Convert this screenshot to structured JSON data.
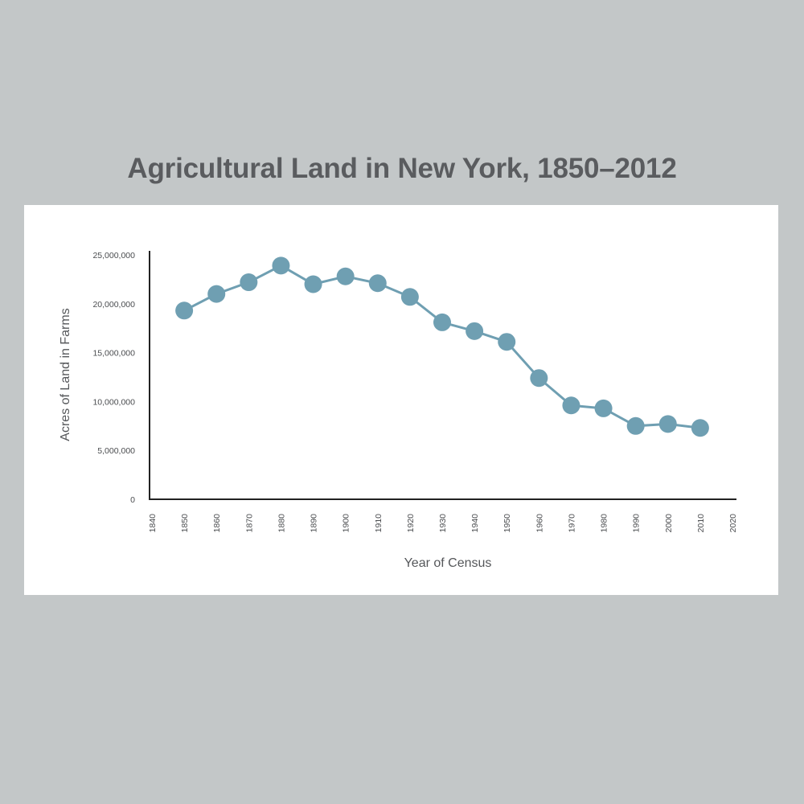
{
  "chart_data": {
    "type": "line",
    "title": "Agricultural  Land in New York, 1850–2012",
    "xlabel": "Year of Census",
    "ylabel": "Acres of Land in Farms",
    "xlim": [
      1840,
      2020
    ],
    "ylim": [
      0,
      25000000
    ],
    "x_ticks": [
      "1840",
      "1850",
      "1860",
      "1870",
      "1880",
      "1890",
      "1900",
      "1910",
      "1920",
      "1930",
      "1940",
      "1950",
      "1960",
      "1970",
      "1980",
      "1990",
      "2000",
      "2010",
      "2020"
    ],
    "y_ticks": [
      "0",
      "5,000,000",
      "10,000,000",
      "15,000,000",
      "20,000,000",
      "25,000,000"
    ],
    "grid": false,
    "legend": "none",
    "colors": {
      "series": "#6f9fb2",
      "axis": "#222222"
    },
    "series": [
      {
        "x": [
          1850,
          1860,
          1870,
          1880,
          1890,
          1900,
          1910,
          1920,
          1930,
          1940,
          1950,
          1960,
          1970,
          1980,
          1990,
          2000,
          2010
        ],
        "values": [
          19300000,
          21000000,
          22200000,
          23900000,
          22000000,
          22800000,
          22100000,
          20700000,
          18100000,
          17200000,
          16100000,
          12400000,
          9600000,
          9300000,
          7500000,
          7700000,
          7300000
        ]
      }
    ]
  }
}
